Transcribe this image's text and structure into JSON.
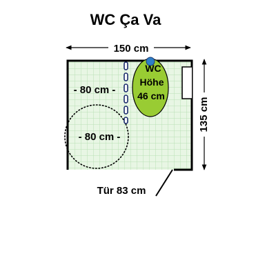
{
  "title": "WC Ça Va",
  "dimensions": {
    "width_label": "150 cm",
    "depth_label": "135 cm",
    "door_label": "Tür 83 cm"
  },
  "areas": {
    "side_clearance_label": "- 80 cm -",
    "turning_circle_label": "- 80 cm -"
  },
  "toilet": {
    "line1": "WC",
    "line2": "Höhe",
    "line3": "46 cm",
    "color": "#99cc33"
  },
  "colors": {
    "floor": "#e8f6e4",
    "tile_grid": "#b8e0b4",
    "wall": "#000000",
    "handrail": "#1a2a6c",
    "flush_button": "#2f7fc8"
  }
}
